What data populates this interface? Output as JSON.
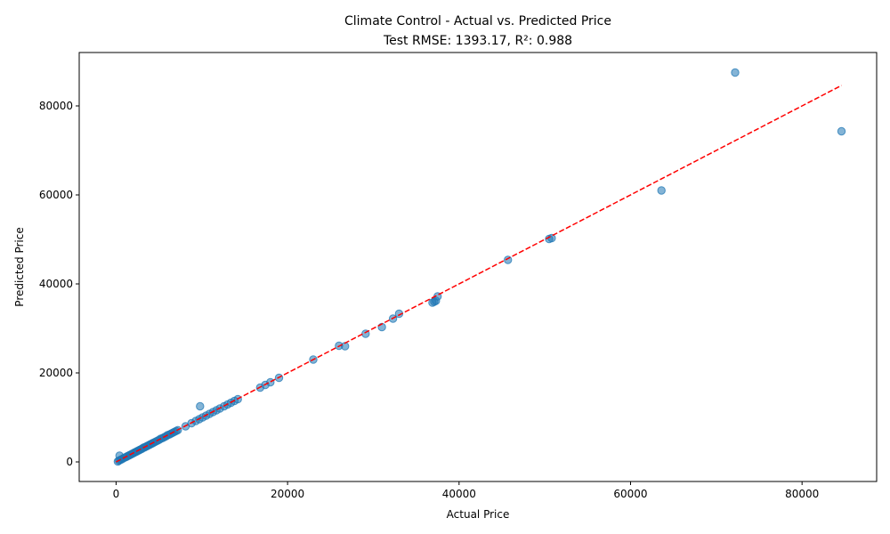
{
  "chart_data": {
    "type": "scatter",
    "title": "Climate Control - Actual vs. Predicted Price",
    "subtitle": "Test RMSE: 1393.17, R²: 0.988",
    "xlabel": "Actual Price",
    "ylabel": "Predicted Price",
    "xlim": [
      -4300,
      88700
    ],
    "ylim": [
      -4400,
      92000
    ],
    "xticks": [
      0,
      20000,
      40000,
      60000,
      80000
    ],
    "yticks": [
      0,
      20000,
      40000,
      60000,
      80000
    ],
    "xtick_labels": [
      "0",
      "20000",
      "40000",
      "60000",
      "80000"
    ],
    "ytick_labels": [
      "0",
      "20000",
      "40000",
      "60000",
      "80000"
    ],
    "grid": false,
    "colors": {
      "points": "#1f77b4",
      "reference_line": "#ff0000"
    },
    "reference_line": {
      "style": "dashed",
      "from": [
        0,
        0
      ],
      "to": [
        84600,
        84600
      ]
    },
    "points": [
      [
        200,
        100
      ],
      [
        350,
        300
      ],
      [
        500,
        450
      ],
      [
        650,
        600
      ],
      [
        800,
        750
      ],
      [
        950,
        950
      ],
      [
        1100,
        1050
      ],
      [
        1250,
        1200
      ],
      [
        1400,
        1350
      ],
      [
        1550,
        1500
      ],
      [
        1700,
        1650
      ],
      [
        1850,
        1800
      ],
      [
        2000,
        1950
      ],
      [
        2150,
        2100
      ],
      [
        2300,
        2250
      ],
      [
        2450,
        2400
      ],
      [
        2600,
        2550
      ],
      [
        2750,
        2700
      ],
      [
        2900,
        2850
      ],
      [
        3050,
        3000
      ],
      [
        3200,
        3200
      ],
      [
        3350,
        3300
      ],
      [
        3500,
        3450
      ],
      [
        3650,
        3600
      ],
      [
        3800,
        3750
      ],
      [
        3950,
        3900
      ],
      [
        4100,
        4050
      ],
      [
        4250,
        4200
      ],
      [
        4400,
        4350
      ],
      [
        4600,
        4550
      ],
      [
        4800,
        4750
      ],
      [
        5000,
        4950
      ],
      [
        5200,
        5200
      ],
      [
        5400,
        5350
      ],
      [
        5600,
        5550
      ],
      [
        5800,
        5750
      ],
      [
        6000,
        6000
      ],
      [
        6200,
        6150
      ],
      [
        6400,
        6350
      ],
      [
        6600,
        6550
      ],
      [
        6800,
        6750
      ],
      [
        7000,
        6950
      ],
      [
        7200,
        7150
      ],
      [
        400,
        1400
      ],
      [
        8100,
        8000
      ],
      [
        8800,
        8700
      ],
      [
        9300,
        9200
      ],
      [
        9700,
        9600
      ],
      [
        10100,
        10000
      ],
      [
        10500,
        10400
      ],
      [
        10900,
        10800
      ],
      [
        11300,
        11200
      ],
      [
        11700,
        11600
      ],
      [
        12100,
        12000
      ],
      [
        12600,
        12500
      ],
      [
        13000,
        12900
      ],
      [
        13400,
        13300
      ],
      [
        13800,
        13700
      ],
      [
        14200,
        14100
      ],
      [
        9800,
        12500
      ],
      [
        16800,
        16700
      ],
      [
        17400,
        17300
      ],
      [
        18000,
        17900
      ],
      [
        19000,
        18900
      ],
      [
        23000,
        23000
      ],
      [
        26000,
        26100
      ],
      [
        26700,
        26000
      ],
      [
        29100,
        28800
      ],
      [
        31000,
        30300
      ],
      [
        32300,
        32200
      ],
      [
        33000,
        33300
      ],
      [
        36900,
        35800
      ],
      [
        37100,
        36000
      ],
      [
        37300,
        36200
      ],
      [
        37500,
        37200
      ],
      [
        45700,
        45400
      ],
      [
        50500,
        50100
      ],
      [
        50800,
        50300
      ],
      [
        63600,
        61000
      ],
      [
        72200,
        87500
      ],
      [
        84600,
        74300
      ]
    ]
  }
}
